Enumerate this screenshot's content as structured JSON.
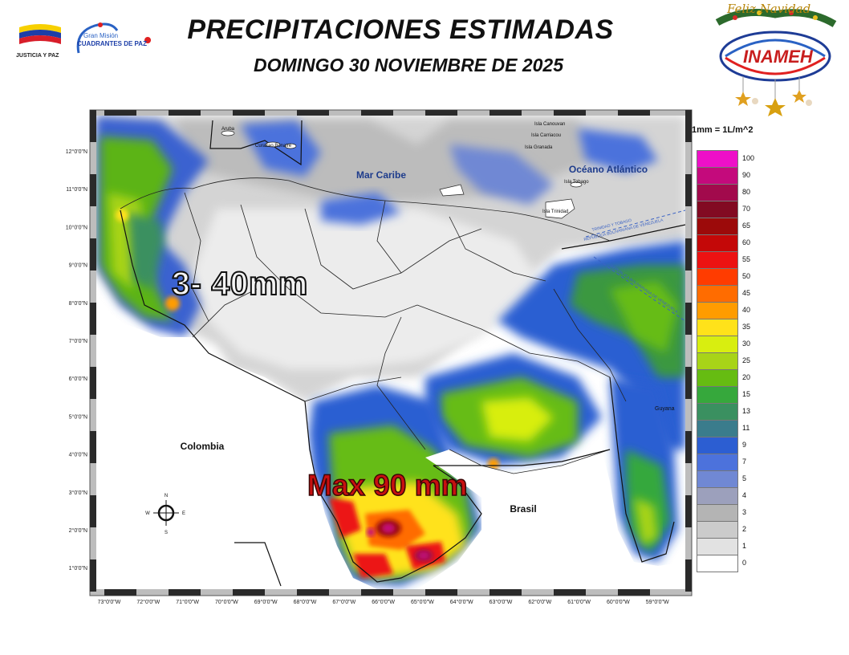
{
  "header": {
    "title": "PRECIPITACIONES ESTIMADAS",
    "subtitle": "DOMINGO 30 NOVIEMBRE  DE 2025"
  },
  "logos": {
    "left_caption": "JUSTICIA Y PAZ",
    "mission_line1": "Gran Misión",
    "mission_line2": "CUADRANTES DE PAZ",
    "inameh": "INAMEH",
    "greeting": "Feliz Navidad"
  },
  "map": {
    "annotations": {
      "west": "3- 40mm",
      "south": "Max 90 mm"
    },
    "place_labels": {
      "caribbean": "Mar Caribe",
      "atlantic": "Océano Atlántico",
      "colombia": "Colombia",
      "brasil": "Brasil",
      "guyana": "Guyana",
      "aruba": "Aruba",
      "curazao": "Curazao Bonaire",
      "canouan": "Isla Canouvan",
      "carriacou": "Isla Carriacou",
      "granada": "Isla Granada",
      "tobago": "Isla Tobago",
      "trinidad": "Isla Trinidad",
      "border1": "TRINIDAD Y TOBAGO",
      "border2": "REPUBLICA BOLIVARIANA DE VENEZUELA",
      "border3": "REPUBLICA BOLIVARIANA DE VENEZUELA"
    },
    "compass": {
      "n": "N",
      "s": "S",
      "e": "E",
      "w": "W"
    },
    "lat_labels": [
      "12°0'0\"N",
      "11°0'0\"N",
      "10°0'0\"N",
      "9°0'0\"N",
      "8°0'0\"N",
      "7°0'0\"N",
      "6°0'0\"N",
      "5°0'0\"N",
      "4°0'0\"N",
      "3°0'0\"N",
      "2°0'0\"N",
      "1°0'0\"N"
    ],
    "lon_labels": [
      "73°0'0\"W",
      "72°0'0\"W",
      "71°0'0\"W",
      "70°0'0\"W",
      "69°0'0\"W",
      "68°0'0\"W",
      "67°0'0\"W",
      "66°0'0\"W",
      "65°0'0\"W",
      "64°0'0\"W",
      "63°0'0\"W",
      "62°0'0\"W",
      "61°0'0\"W",
      "60°0'0\"W",
      "59°0'0\"W"
    ]
  },
  "legend": {
    "units": "1mm = 1L/m^2",
    "items": [
      {
        "value": "100",
        "color": "#ee10c8"
      },
      {
        "value": "90",
        "color": "#c40a7c"
      },
      {
        "value": "80",
        "color": "#a20a4c"
      },
      {
        "value": "70",
        "color": "#820a22"
      },
      {
        "value": "65",
        "color": "#9c0a0a"
      },
      {
        "value": "60",
        "color": "#c40808"
      },
      {
        "value": "55",
        "color": "#ec1212"
      },
      {
        "value": "50",
        "color": "#ff3c00"
      },
      {
        "value": "45",
        "color": "#ff6c00"
      },
      {
        "value": "40",
        "color": "#ff9c00"
      },
      {
        "value": "35",
        "color": "#ffe21a"
      },
      {
        "value": "30",
        "color": "#d8ee10"
      },
      {
        "value": "25",
        "color": "#a8d418"
      },
      {
        "value": "20",
        "color": "#66bc12"
      },
      {
        "value": "15",
        "color": "#36a83c"
      },
      {
        "value": "13",
        "color": "#3a9060"
      },
      {
        "value": "11",
        "color": "#3a7c8c"
      },
      {
        "value": "9",
        "color": "#2c5ed2"
      },
      {
        "value": "7",
        "color": "#4c72dc"
      },
      {
        "value": "5",
        "color": "#7088d4"
      },
      {
        "value": "4",
        "color": "#9ca0bc"
      },
      {
        "value": "3",
        "color": "#b4b4b4"
      },
      {
        "value": "2",
        "color": "#cbcbcb"
      },
      {
        "value": "1",
        "color": "#e2e2e2"
      },
      {
        "value": "0",
        "color": "#ffffff"
      }
    ]
  }
}
